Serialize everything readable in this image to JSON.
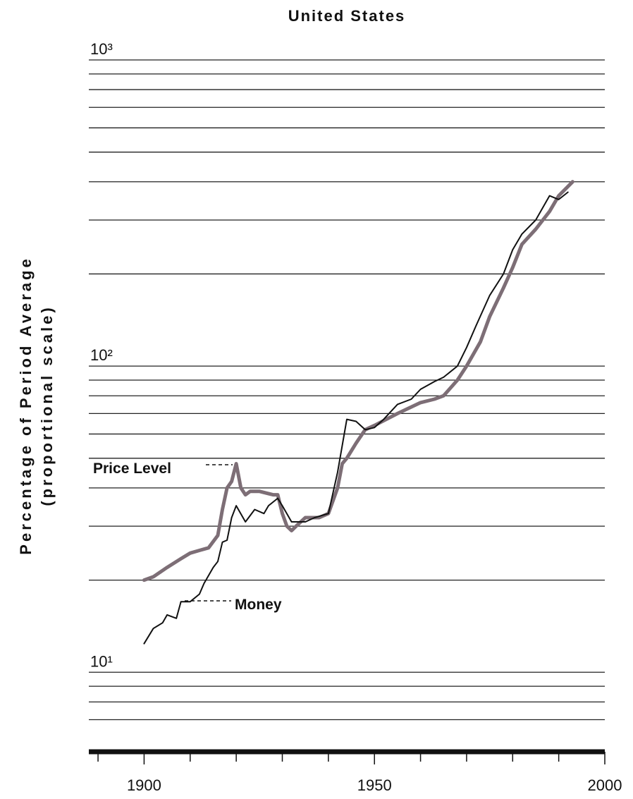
{
  "chart_data": {
    "type": "line",
    "title": "United States",
    "y_label": [
      "Percentage of Period Average",
      "(proportional scale)"
    ],
    "log_y": true,
    "grid": true,
    "xlim": [
      1888,
      2000
    ],
    "xticks": [
      1900,
      1950,
      2000
    ],
    "minor_xticks": [
      1890,
      1910,
      1920,
      1930,
      1940,
      1960,
      1970,
      1980,
      1990
    ],
    "ylim": [
      5.5,
      1000
    ],
    "yticks": [
      {
        "value": 10,
        "label": "10¹"
      },
      {
        "value": 100,
        "label": "10²"
      },
      {
        "value": 1000,
        "label": "10³"
      }
    ],
    "minor_yticks": [
      7,
      8,
      9,
      20,
      30,
      40,
      50,
      60,
      70,
      80,
      90,
      200,
      300,
      400,
      500,
      600,
      700,
      800,
      900
    ],
    "annotations": [
      "Price Level",
      "Money"
    ],
    "series": [
      {
        "name": "Price Level",
        "color": "#7d6e76",
        "width": 5,
        "x": [
          1900,
          1902,
          1905,
          1908,
          1910,
          1912,
          1914,
          1916,
          1917,
          1918,
          1919,
          1920,
          1921,
          1922,
          1923,
          1925,
          1928,
          1929,
          1930,
          1931,
          1932,
          1933,
          1935,
          1938,
          1940,
          1942,
          1943,
          1944,
          1946,
          1948,
          1950,
          1955,
          1960,
          1963,
          1965,
          1968,
          1970,
          1973,
          1975,
          1978,
          1980,
          1982,
          1985,
          1988,
          1990,
          1993
        ],
        "values": [
          20,
          20.5,
          22,
          23.5,
          24.5,
          25,
          25.5,
          28,
          34,
          40,
          42,
          48,
          40,
          38,
          39,
          39,
          38,
          38,
          33,
          30,
          29,
          30,
          32,
          32,
          33,
          40,
          48,
          50,
          56,
          62,
          64,
          70,
          76,
          78,
          80,
          90,
          100,
          120,
          145,
          180,
          210,
          250,
          280,
          320,
          360,
          400
        ]
      },
      {
        "name": "Money",
        "color": "#111111",
        "width": 2,
        "x": [
          1900,
          1902,
          1904,
          1905,
          1907,
          1908,
          1910,
          1912,
          1913,
          1915,
          1916,
          1917,
          1918,
          1919,
          1920,
          1922,
          1924,
          1926,
          1927,
          1929,
          1930,
          1932,
          1935,
          1937,
          1940,
          1942,
          1944,
          1946,
          1948,
          1950,
          1952,
          1955,
          1958,
          1960,
          1963,
          1965,
          1968,
          1970,
          1972,
          1975,
          1978,
          1980,
          1982,
          1985,
          1988,
          1990,
          1992
        ],
        "values": [
          12.4,
          13.9,
          14.5,
          15.4,
          15,
          17,
          17,
          18,
          19.5,
          22,
          23,
          26.6,
          27,
          32,
          35,
          31,
          34,
          33,
          35,
          37,
          35,
          31,
          31,
          32,
          33,
          45,
          67,
          66,
          62,
          63,
          67,
          75,
          78,
          84,
          89,
          92,
          100,
          115,
          135,
          170,
          200,
          240,
          270,
          300,
          360,
          350,
          370
        ]
      }
    ]
  }
}
